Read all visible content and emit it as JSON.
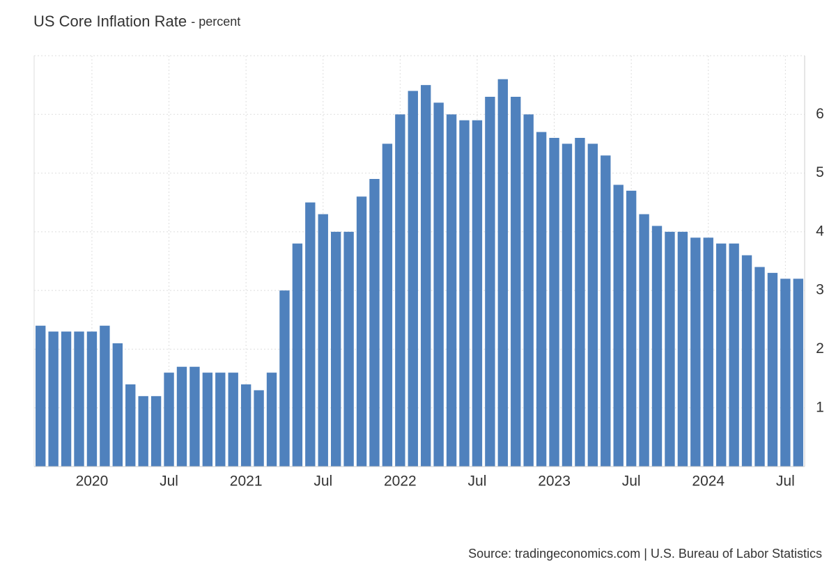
{
  "chart_data": {
    "type": "bar",
    "title": "US Core Inflation Rate",
    "subtitle": "- percent",
    "source": "Source: tradingeconomics.com | U.S. Bureau of Labor Statistics",
    "categories": [
      null,
      null,
      null,
      null,
      "2020",
      null,
      null,
      null,
      null,
      null,
      "Jul",
      null,
      null,
      null,
      null,
      null,
      "2021",
      null,
      null,
      null,
      null,
      null,
      "Jul",
      null,
      null,
      null,
      null,
      null,
      "2022",
      null,
      null,
      null,
      null,
      null,
      "Jul",
      null,
      null,
      null,
      null,
      null,
      "2023",
      null,
      null,
      null,
      null,
      null,
      "Jul",
      null,
      null,
      null,
      null,
      null,
      "2024",
      null,
      null,
      null,
      null,
      null,
      "Jul",
      null
    ],
    "values": [
      2.4,
      2.3,
      2.3,
      2.3,
      2.3,
      2.4,
      2.1,
      1.4,
      1.2,
      1.2,
      1.6,
      1.7,
      1.7,
      1.6,
      1.6,
      1.6,
      1.4,
      1.3,
      1.6,
      3.0,
      3.8,
      4.5,
      4.3,
      4.0,
      4.0,
      4.6,
      4.9,
      5.5,
      6.0,
      6.4,
      6.5,
      6.2,
      6.0,
      5.9,
      5.9,
      6.3,
      6.6,
      6.3,
      6.0,
      5.7,
      5.6,
      5.5,
      5.6,
      5.5,
      5.3,
      4.8,
      4.7,
      4.3,
      4.1,
      4.0,
      4.0,
      3.9,
      3.9,
      3.8,
      3.8,
      3.6,
      3.4,
      3.3,
      3.2,
      3.2
    ],
    "color": "#4f81bd",
    "ylim": [
      0,
      7
    ],
    "yticks": [
      1,
      2,
      3,
      4,
      5,
      6
    ],
    "grid": true
  }
}
